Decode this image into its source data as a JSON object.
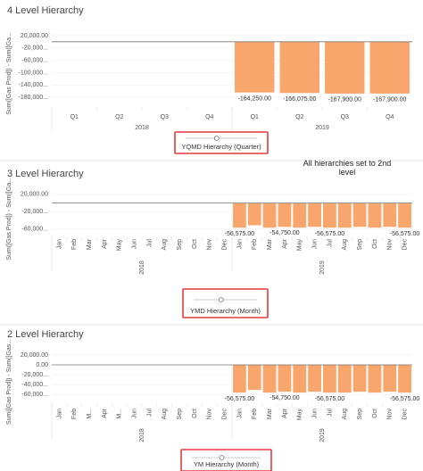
{
  "chart_data": [
    {
      "type": "bar",
      "title": "4 Level Hierarchy",
      "y_label": "Sum([Gas Prod]) - Sum([Ga...",
      "categories": [
        "Q1",
        "Q2",
        "Q3",
        "Q4",
        "Q1",
        "Q2",
        "Q3",
        "Q4"
      ],
      "group_labels": [
        "2018",
        "2019"
      ],
      "values": [
        null,
        null,
        null,
        null,
        -164250,
        -166075,
        -167900,
        -167900
      ],
      "value_labels": [
        null,
        null,
        null,
        null,
        "-164,250.00",
        "-166,075.00",
        "-167,900.00",
        "-167,900.00"
      ],
      "color": "#f9a66c",
      "ylim": [
        -200000,
        40000
      ],
      "yticks": [
        {
          "value": 20000,
          "label": "20,000.00"
        },
        {
          "value": -20000,
          "label": "-20,000..."
        },
        {
          "value": -60000,
          "label": "-60,000..."
        },
        {
          "value": -100000,
          "label": "-100,000..."
        },
        {
          "value": -140000,
          "label": "-140,000..."
        },
        {
          "value": -180000,
          "label": "-180,000..."
        }
      ],
      "slider_label": "YQMD Hierarchy (Quarter)"
    },
    {
      "type": "bar",
      "title": "3 Level Hierarchy",
      "y_label": "Sum([Gas Prod]) - Sum([Ga...",
      "annotation": "All hierarchies set to 2nd level",
      "categories": [
        "Jan",
        "Feb",
        "Mar",
        "Apr",
        "May",
        "Jun",
        "Jul",
        "Aug",
        "Sep",
        "Oct",
        "Nov",
        "Dec",
        "Jan",
        "Feb",
        "Mar",
        "Apr",
        "May",
        "Jun",
        "Jul",
        "Aug",
        "Sep",
        "Oct",
        "Nov",
        "Dec"
      ],
      "group_labels": [
        "2018",
        "2019"
      ],
      "values": [
        null,
        null,
        null,
        null,
        null,
        null,
        null,
        null,
        null,
        null,
        null,
        null,
        -56575,
        -51100,
        -56575,
        -54750,
        -56575,
        -54750,
        -56575,
        -56575,
        -54750,
        -56575,
        -54750,
        -56575
      ],
      "value_labels": [
        null,
        null,
        null,
        null,
        null,
        null,
        null,
        null,
        null,
        null,
        null,
        null,
        "-56,575.00",
        null,
        null,
        "-54,750.00",
        null,
        null,
        "-56,575.00",
        null,
        null,
        null,
        null,
        "-56,575.00"
      ],
      "color": "#f9a66c",
      "ylim": [
        -70000,
        30000
      ],
      "yticks": [
        {
          "value": 20000,
          "label": "20,000.00"
        },
        {
          "value": -20000,
          "label": "-20,000..."
        },
        {
          "value": -60000,
          "label": "-60,000..."
        }
      ],
      "slider_label": "YMD Hierarchy (Month)"
    },
    {
      "type": "bar",
      "title": "2 Level Hierarchy",
      "y_label": "Sum([Gas Prod]) - Sum([Gas...",
      "categories": [
        "Jan",
        "Feb",
        "M...",
        "Apr",
        "M...",
        "Jun",
        "Jul",
        "Aug",
        "Sep",
        "Oct",
        "Nov",
        "Dec",
        "Jan",
        "Feb",
        "Mar",
        "Apr",
        "May",
        "Jun",
        "Jul",
        "Aug",
        "Sep",
        "Oct",
        "Nov",
        "Dec"
      ],
      "group_labels": [
        "2018",
        "2019"
      ],
      "values": [
        null,
        null,
        null,
        null,
        null,
        null,
        null,
        null,
        null,
        null,
        null,
        null,
        -56575,
        -51100,
        -56575,
        -54750,
        -56575,
        -54750,
        -56575,
        -56575,
        -54750,
        -56575,
        -54750,
        -56575
      ],
      "value_labels": [
        null,
        null,
        null,
        null,
        null,
        null,
        null,
        null,
        null,
        null,
        null,
        null,
        "-56,575.00",
        null,
        null,
        "-54,750.00",
        null,
        null,
        "-56,575.00",
        null,
        null,
        null,
        null,
        "-56,575.00"
      ],
      "color": "#f9a66c",
      "ylim": [
        -70000,
        30000
      ],
      "yticks": [
        {
          "value": 20000,
          "label": "20,000.00"
        },
        {
          "value": 0,
          "label": "0.00"
        },
        {
          "value": -20000,
          "label": "-20,000..."
        },
        {
          "value": -40000,
          "label": "-40,000..."
        },
        {
          "value": -60000,
          "label": "-60,000..."
        }
      ],
      "slider_label": "YM Hierarchy (Month)"
    }
  ]
}
